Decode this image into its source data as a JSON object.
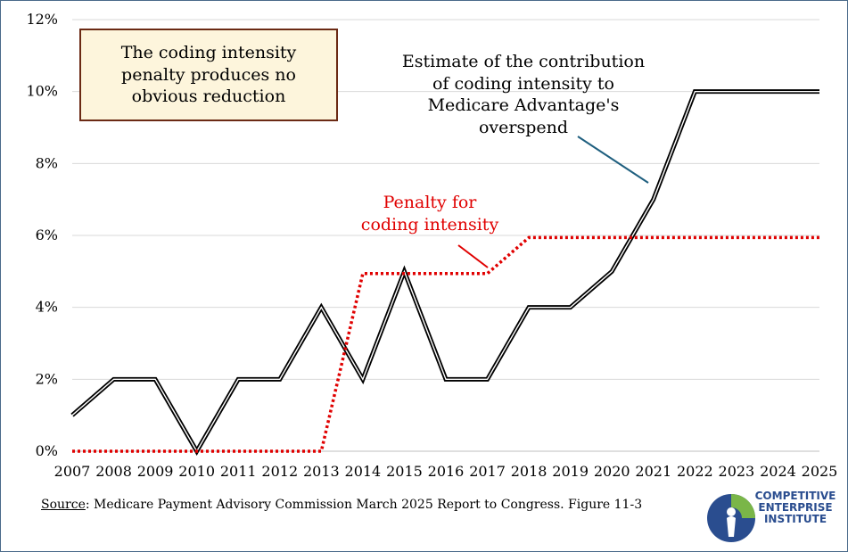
{
  "chart_data": {
    "type": "line",
    "x": [
      2007,
      2008,
      2009,
      2010,
      2011,
      2012,
      2013,
      2014,
      2015,
      2016,
      2017,
      2018,
      2019,
      2020,
      2021,
      2022,
      2023,
      2024,
      2025
    ],
    "series": [
      {
        "name": "Estimate of the contribution of coding intensity to Medicare Advantage's overspend",
        "values": [
          1,
          2,
          2,
          0,
          2,
          2,
          4,
          2,
          5,
          2,
          2,
          4,
          4,
          5,
          7,
          10,
          10,
          10,
          10
        ],
        "color": "#000000",
        "style": "double-line"
      },
      {
        "name": "Penalty for coding intensity",
        "values": [
          0,
          0,
          0,
          0,
          0,
          0,
          0,
          4.94,
          4.94,
          4.94,
          4.94,
          5.94,
          5.94,
          5.94,
          5.94,
          5.94,
          5.94,
          5.94,
          5.94
        ],
        "color": "#e00000",
        "style": "dotted"
      }
    ],
    "xlim": [
      2007,
      2025
    ],
    "ylim": [
      0,
      12
    ],
    "y_ticks": [
      0,
      2,
      4,
      6,
      8,
      10,
      12
    ],
    "y_tick_labels": [
      "0%",
      "2%",
      "4%",
      "6%",
      "8%",
      "10%",
      "12%"
    ],
    "x_tick_labels": [
      "2007",
      "2008",
      "2009",
      "2010",
      "2011",
      "2012",
      "2013",
      "2014",
      "2015",
      "2016",
      "2017",
      "2018",
      "2019",
      "2020",
      "2021",
      "2022",
      "2023",
      "2024",
      "2025"
    ],
    "grid": "horizontal",
    "title": "",
    "xlabel": "",
    "ylabel": ""
  },
  "annotations": {
    "callout_box": "The coding intensity\npenalty produces no\nobvious reduction",
    "black_series_label": "Estimate of the contribution\nof coding intensity to\nMedicare Advantage's\noverspend",
    "red_series_label": "Penalty for\ncoding intensity"
  },
  "source": {
    "label": "Source",
    "text": ": Medicare Payment Advisory Commission March 2025 Report to Congress. Figure 11-3"
  },
  "logo": {
    "line1": "COMPETITIVE",
    "line2": "ENTERPRISE",
    "line3": "INSTITUTE"
  },
  "colors": {
    "grid": "#d9d9d9",
    "callout_bg": "#fdf5dc",
    "callout_border": "#6b2a14",
    "logo_blue": "#2a4d8f",
    "logo_green": "#7ab648"
  }
}
